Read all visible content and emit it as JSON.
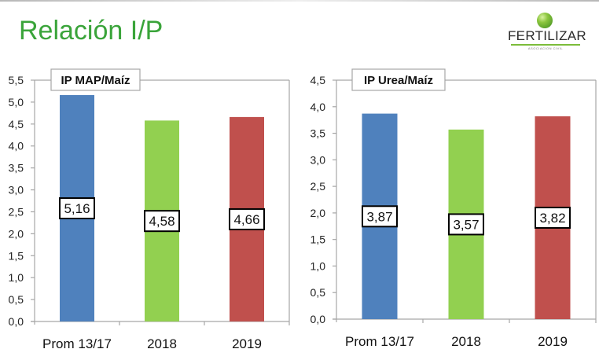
{
  "header": {
    "title": "Relación I/P",
    "logo": {
      "name": "FERTILIZAR",
      "subtitle": "ASOCIACION CIVIL",
      "accent": "#7cbc3a"
    }
  },
  "title_color": "#3aa43a",
  "chart_data": [
    {
      "type": "bar",
      "title": "IP MAP/Maíz",
      "categories": [
        "Prom 13/17",
        "2018",
        "2019"
      ],
      "values": [
        5.16,
        4.58,
        4.66
      ],
      "value_labels": [
        "5,16",
        "4,58",
        "4,66"
      ],
      "colors": [
        "#4f81bd",
        "#92d050",
        "#c0504d"
      ],
      "xlabel": "",
      "ylabel": "",
      "ylim": [
        0,
        5.5
      ],
      "ytick_step": 0.5,
      "yticks": [
        "0,0",
        "0,5",
        "1,0",
        "1,5",
        "2,0",
        "2,5",
        "3,0",
        "3,5",
        "4,0",
        "4,5",
        "5,0",
        "5,5"
      ],
      "grid": false,
      "legend": "none"
    },
    {
      "type": "bar",
      "title": "IP Urea/Maíz",
      "categories": [
        "Prom 13/17",
        "2018",
        "2019"
      ],
      "values": [
        3.87,
        3.57,
        3.82
      ],
      "value_labels": [
        "3,87",
        "3,57",
        "3,82"
      ],
      "colors": [
        "#4f81bd",
        "#92d050",
        "#c0504d"
      ],
      "xlabel": "",
      "ylabel": "",
      "ylim": [
        0,
        4.5
      ],
      "ytick_step": 0.5,
      "yticks": [
        "0,0",
        "0,5",
        "1,0",
        "1,5",
        "2,0",
        "2,5",
        "3,0",
        "3,5",
        "4,0",
        "4,5"
      ],
      "grid": false,
      "legend": "none"
    }
  ]
}
